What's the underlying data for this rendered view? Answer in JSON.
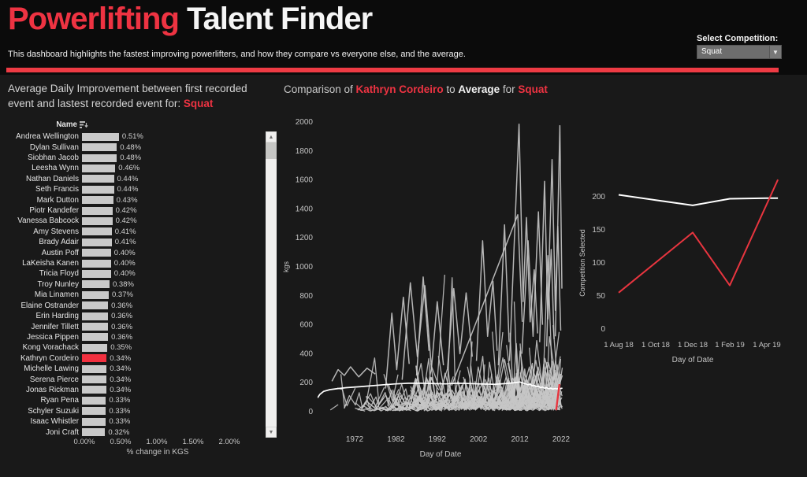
{
  "colors": {
    "accent": "#ee3342",
    "divider": "#ee3b44",
    "bar_gray": "#c9c9c9",
    "bar_red": "#f2303f",
    "line_gray": "#c6c6c6",
    "line_white": "#ffffff",
    "line_red": "#e8353f",
    "bg": "#191919",
    "header_bg": "#0b0b0b",
    "axis_text": "#c4c4c4"
  },
  "icons": {
    "dropdown_arrow": "▼",
    "scroll_up": "▲",
    "scroll_down": "▼"
  },
  "header": {
    "title_red": "Powerlifting",
    "title_white": " Talent Finder",
    "subtitle": "This dashboard highlights the fastest improving powerlifters, and how they compare vs everyone else, and the average.",
    "competition_label": "Select Competition:",
    "competition_value": "Squat"
  },
  "left_panel": {
    "title_prefix": "Average Daily Improvement between first recorded event and lastest recorded event for: ",
    "title_highlight": "Squat"
  },
  "middle_panel": {
    "title_parts": [
      {
        "text": "Comparison of ",
        "style": "muted"
      },
      {
        "text": "Kathryn Cordeiro",
        "style": "red"
      },
      {
        "text": " to ",
        "style": "muted"
      },
      {
        "text": "Average",
        "style": "white"
      },
      {
        "text": " for ",
        "style": "muted"
      },
      {
        "text": "Squat",
        "style": "red"
      }
    ]
  },
  "chart_data": [
    {
      "type": "bar",
      "title": "Average Daily Improvement between first recorded event and lastest recorded event for: Squat",
      "column_header": "Name",
      "xlabel": "% change in KGS",
      "x_ticks": [
        "0.00%",
        "0.50%",
        "1.00%",
        "1.50%",
        "2.00%"
      ],
      "xlim": [
        0,
        2.0
      ],
      "highlight_name": "Kathryn Cordeiro",
      "categories": [
        "Andrea Wellington",
        "Dylan Sullivan",
        "Siobhan Jacob",
        "Leesha Wynn",
        "Nathan Daniels",
        "Seth Francis",
        "Mark Dutton",
        "Piotr Kandefer",
        "Vanessa Babcock",
        "Amy Stevens",
        "Brady Adair",
        "Austin Poff",
        "LaKeisha Kanen",
        "Tricia Floyd",
        "Troy Nunley",
        "Mia Linamen",
        "Elaine Ostrander",
        "Erin Harding",
        "Jennifer Tillett",
        "Jessica Pippen",
        "Kong Vorachack",
        "Kathryn Cordeiro",
        "Michelle Lawing",
        "Serena Pierce",
        "Jonas Rickman",
        "Ryan Pena",
        "Schyler Suzuki",
        "Isaac Whistler",
        "Joni Craft"
      ],
      "values": [
        0.51,
        0.48,
        0.48,
        0.46,
        0.44,
        0.44,
        0.43,
        0.42,
        0.42,
        0.41,
        0.41,
        0.4,
        0.4,
        0.4,
        0.38,
        0.37,
        0.36,
        0.36,
        0.36,
        0.36,
        0.35,
        0.34,
        0.34,
        0.34,
        0.34,
        0.33,
        0.33,
        0.33,
        0.32
      ]
    },
    {
      "type": "line",
      "title": "Comparison of Kathryn Cordeiro to Average for Squat",
      "xlabel": "Day of Date",
      "ylabel": "kgs",
      "x_ticks": [
        1972,
        1982,
        1992,
        2002,
        2012,
        2022
      ],
      "y_ticks": [
        0,
        200,
        400,
        600,
        800,
        1000,
        1200,
        1400,
        1600,
        1800,
        2000
      ],
      "xlim": [
        1963,
        2022.5
      ],
      "ylim": [
        0,
        2000
      ],
      "series": [
        {
          "name": "Average",
          "color": "white",
          "points": [
            [
              1963,
              95
            ],
            [
              1963.6,
              120
            ],
            [
              1964.5,
              140
            ],
            [
              1966,
              152
            ],
            [
              1968,
              160
            ],
            [
              1970,
              166
            ],
            [
              1973,
              172
            ],
            [
              1976,
              179
            ],
            [
              1979,
              186
            ],
            [
              1982,
              192
            ],
            [
              1985,
              196
            ],
            [
              1988,
              197
            ],
            [
              1991,
              194
            ],
            [
              1994,
              192
            ],
            [
              1997,
              196
            ],
            [
              2000,
              194
            ],
            [
              2003,
              191
            ],
            [
              2006,
              189
            ],
            [
              2009,
              195
            ],
            [
              2011,
              201
            ],
            [
              2012,
              205
            ],
            [
              2013,
              196
            ],
            [
              2014,
              186
            ],
            [
              2014.5,
              190
            ],
            [
              2015,
              178
            ],
            [
              2015.5,
              182
            ],
            [
              2016,
              172
            ],
            [
              2016.5,
              176
            ],
            [
              2017,
              166
            ],
            [
              2017.5,
              170
            ],
            [
              2018,
              162
            ],
            [
              2018.5,
              166
            ],
            [
              2019,
              158
            ],
            [
              2019.5,
              162
            ],
            [
              2020,
              156
            ],
            [
              2020.5,
              160
            ],
            [
              2021,
              157
            ],
            [
              2021.5,
              161
            ],
            [
              2022,
              160
            ],
            [
              2022.3,
              163
            ]
          ]
        },
        {
          "name": "Kathryn Cordeiro",
          "color": "red",
          "points": [
            [
              2020.8,
              10
            ],
            [
              2021.6,
              190
            ]
          ]
        }
      ],
      "background_ensemble": {
        "description": "unlabeled light-gray lines for every other athlete; dense mass below ~600 kgs growing toward 2022 with spikes to 2000",
        "seed": 11,
        "career_count": 250,
        "floor_count": 45,
        "landmark_lines": [
          [
            [
              2009.5,
              350
            ],
            [
              2011.8,
              1985
            ],
            [
              2012.8,
              760
            ],
            [
              2013.6,
              1340
            ],
            [
              2014.5,
              620
            ],
            [
              2015.5,
              980
            ],
            [
              2016.3,
              540
            ]
          ],
          [
            [
              2020.6,
              520
            ],
            [
              2021.7,
              1975
            ],
            [
              2022.2,
              850
            ]
          ],
          [
            [
              2016.8,
              480
            ],
            [
              2018.0,
              1590
            ],
            [
              2018.8,
              640
            ],
            [
              2019.6,
              1120
            ],
            [
              2020.3,
              500
            ]
          ],
          [
            [
              2006.8,
              320
            ],
            [
              2008.3,
              1290
            ],
            [
              2009.4,
              480
            ]
          ],
          [
            [
              1983.5,
              220
            ],
            [
              1985.5,
              890
            ],
            [
              1987.2,
              380
            ],
            [
              1989.0,
              870
            ],
            [
              1990.6,
              300
            ],
            [
              1992.0,
              760
            ],
            [
              1993.5,
              320
            ]
          ],
          [
            [
              1979.5,
              160
            ],
            [
              1981.0,
              680
            ],
            [
              1982.2,
              290
            ],
            [
              1983.8,
              790
            ],
            [
              1985.2,
              330
            ]
          ],
          [
            [
              1966.5,
              210
            ],
            [
              1968.0,
              290
            ],
            [
              1969.5,
              250
            ],
            [
              1971.0,
              310
            ],
            [
              1973.0,
              240
            ],
            [
              1975.0,
              300
            ],
            [
              1977.0,
              260
            ]
          ],
          [
            [
              1994.5,
              300
            ],
            [
              1996.0,
              850
            ],
            [
              1997.5,
              400
            ],
            [
              1999.0,
              820
            ],
            [
              2000.5,
              380
            ]
          ],
          [
            [
              2001.5,
              350
            ],
            [
              2003.0,
              1180
            ],
            [
              2004.2,
              520
            ],
            [
              2005.5,
              900
            ],
            [
              2006.5,
              420
            ]
          ],
          [
            [
              2012.5,
              400
            ],
            [
              2014.0,
              1180
            ],
            [
              2015.2,
              520
            ],
            [
              2016.5,
              1380
            ],
            [
              2017.5,
              600
            ]
          ],
          [
            [
              1995.5,
              180
            ],
            [
              2011.5,
              1360
            ],
            [
              2012.6,
              620
            ]
          ],
          [
            [
              2018.5,
              450
            ],
            [
              2019.8,
              1740
            ],
            [
              2020.6,
              700
            ],
            [
              2021.2,
              1280
            ],
            [
              2021.9,
              560
            ]
          ],
          [
            [
              1987,
              250
            ],
            [
              1988.6,
              930
            ],
            [
              1990,
              420
            ]
          ]
        ]
      }
    },
    {
      "type": "line",
      "title": "",
      "xlabel": "Day of Date",
      "ylabel": "Competition Selected",
      "x_ticks": [
        "1 Aug 18",
        "1 Oct 18",
        "1 Dec 18",
        "1 Feb 19",
        "1 Apr 19"
      ],
      "y_ticks": [
        0,
        50,
        100,
        150,
        200
      ],
      "ylim": [
        0,
        235
      ],
      "series": [
        {
          "name": "Average",
          "color": "white",
          "points": [
            [
              0,
              203
            ],
            [
              1,
              195
            ],
            [
              2,
              187
            ],
            [
              3,
              197
            ],
            [
              4,
              198
            ],
            [
              4.3,
              198
            ]
          ]
        },
        {
          "name": "Kathryn Cordeiro",
          "color": "red",
          "points": [
            [
              0,
              55
            ],
            [
              2,
              146
            ],
            [
              3,
              66
            ],
            [
              4.3,
              226
            ]
          ]
        }
      ]
    }
  ]
}
